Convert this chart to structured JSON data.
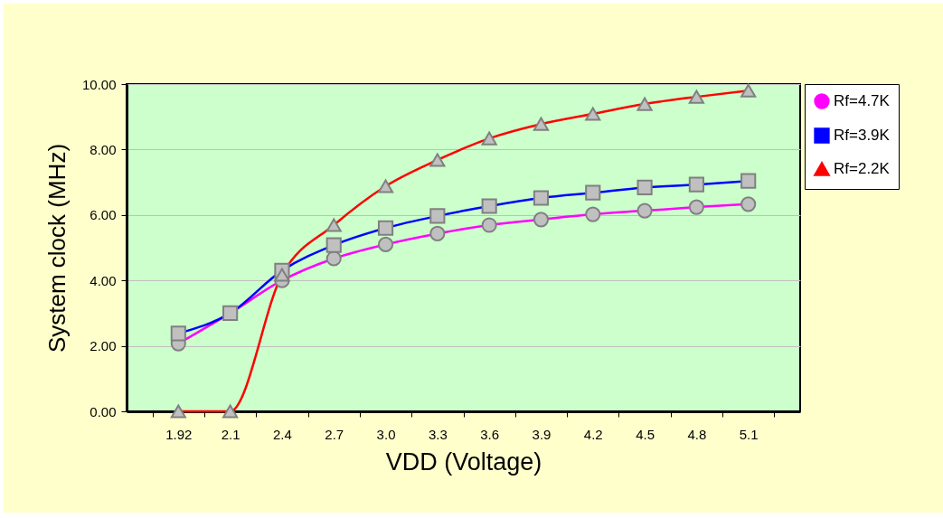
{
  "chart_data": {
    "type": "line",
    "xlabel": "VDD (Voltage)",
    "ylabel": "System clock (MHz)",
    "categories": [
      "1.92",
      "2.1",
      "2.4",
      "2.7",
      "3.0",
      "3.3",
      "3.6",
      "3.9",
      "4.2",
      "4.5",
      "4.8",
      "5.1"
    ],
    "series": [
      {
        "name": "Rf=4.7K",
        "color": "#ff00ff",
        "marker": "circle",
        "values": [
          2.07,
          3.0,
          4.0,
          4.67,
          5.1,
          5.43,
          5.69,
          5.86,
          6.02,
          6.13,
          6.24,
          6.33
        ]
      },
      {
        "name": "Rf=3.9K",
        "color": "#0000ff",
        "marker": "square",
        "values": [
          2.38,
          3.0,
          4.3,
          5.08,
          5.6,
          5.97,
          6.27,
          6.52,
          6.68,
          6.84,
          6.93,
          7.04
        ]
      },
      {
        "name": "Rf=2.2K",
        "color": "#ff0000",
        "marker": "triangle",
        "values": [
          0,
          0,
          4.17,
          5.69,
          6.88,
          7.68,
          8.34,
          8.78,
          9.09,
          9.39,
          9.61,
          9.8
        ]
      }
    ],
    "ylim": [
      0,
      10
    ],
    "yticks": [
      {
        "value": 0,
        "label": "0.00"
      },
      {
        "value": 2,
        "label": "2.00"
      },
      {
        "value": 4,
        "label": "4.00"
      },
      {
        "value": 6,
        "label": "6.00"
      },
      {
        "value": 8,
        "label": "8.00"
      },
      {
        "value": 10,
        "label": "10.00"
      }
    ],
    "grid": "y",
    "legend": "right",
    "line_style": "solid"
  }
}
